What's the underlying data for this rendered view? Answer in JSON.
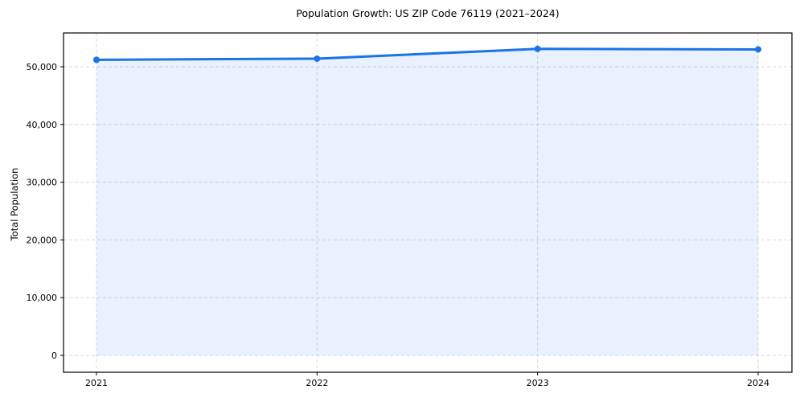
{
  "page": {
    "background": "#ffffff"
  },
  "chart_data": {
    "type": "line",
    "title": "Population Growth: US ZIP Code 76119 (2021–2024)",
    "xlabel": "",
    "ylabel": "Total Population",
    "x": [
      2021,
      2022,
      2023,
      2024
    ],
    "xtick_labels": [
      "2021",
      "2022",
      "2023",
      "2024"
    ],
    "series": [
      {
        "name": "Total Population",
        "values": [
          51200,
          51400,
          53100,
          53000
        ]
      }
    ],
    "values": [
      51200,
      51400,
      53100,
      53000
    ],
    "yticks": [
      0,
      10000,
      20000,
      30000,
      40000,
      50000
    ],
    "ytick_labels": [
      "0",
      "10,000",
      "20,000",
      "30,000",
      "40,000",
      "50,000"
    ],
    "ylim": [
      0,
      55800
    ],
    "grid": true,
    "legend_position": "none",
    "line_color": "#1a73e8",
    "fill_under_line": true,
    "fill_opacity": 0.1,
    "marker": "circle",
    "grid_color": "#d9d9d9",
    "spine_color": "#000000",
    "text_color": "#000000"
  }
}
